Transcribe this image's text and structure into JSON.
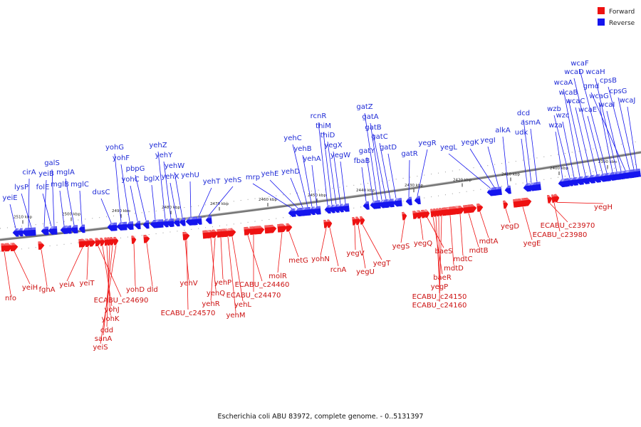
{
  "legend": {
    "forward_label": "Forward",
    "reverse_label": "Reverse",
    "forward_color": "#ee1111",
    "reverse_color": "#1515ee"
  },
  "caption": "Escherichia coli ABU 83972, complete genome. - 0..5131397",
  "ticks": [
    "2510 kbp",
    "2500 kbp",
    "2490 kbp",
    "2480 kbp",
    "2470 kbp",
    "2460 kbp",
    "2450 kbp",
    "2440 kbp",
    "2430 kbp",
    "2420 kbp",
    "2410 kbp",
    "2400 kbp",
    "2390 kbp"
  ],
  "reverse_genes": [
    "yeiE",
    "lysP",
    "cirA",
    "yeiB",
    "folE",
    "galS",
    "mglB",
    "mglA",
    "mglC",
    "dusC",
    "yohG",
    "yohF",
    "yohC",
    "pbpG",
    "bglX",
    "yehZ",
    "yehY",
    "yehX",
    "yehW",
    "yehU",
    "yehT",
    "yehS",
    "mrp",
    "yehE",
    "yehD",
    "yehC",
    "yehB",
    "yehA",
    "rcnR",
    "thiM",
    "thiD",
    "yegX",
    "yegW",
    "fbaB",
    "gatY",
    "gatZ",
    "gatA",
    "gatB",
    "gatC",
    "gatD",
    "gatR",
    "yegR",
    "yegL",
    "yegK",
    "yegI",
    "alkA",
    "udk",
    "dcd",
    "asmA",
    "wza",
    "wzb",
    "wzc",
    "wcaA",
    "wcaB",
    "wcaC",
    "wcaD",
    "wcaE",
    "wcaF",
    "wcaG",
    "wcaH",
    "wcaI",
    "gmd",
    "cpsB",
    "cpsG",
    "wcaJ"
  ],
  "forward_genes": [
    "nfo",
    "yeiH",
    "fghA",
    "yeiA",
    "yeiT",
    "ECABU_c24690",
    "yohJ",
    "yohK",
    "cdd",
    "sanA",
    "yeiS",
    "yohD",
    "dld",
    "yehV",
    "ECABU_c24570",
    "yehQ",
    "yehR",
    "yehP",
    "yehL",
    "yehM",
    "ECABU_c24460",
    "ECABU_c24470",
    "molR",
    "metG",
    "yohN",
    "rcnA",
    "yegV",
    "yegU",
    "yegT",
    "yegS",
    "yegQ",
    "baeS",
    "baeR",
    "yegP",
    "ECABU_c24150",
    "ECABU_c24160",
    "mdtD",
    "mdtC",
    "mdtB",
    "mdtA",
    "yegD",
    "yegE",
    "ECABU_c23970",
    "ECABU_c23980",
    "yegH"
  ]
}
